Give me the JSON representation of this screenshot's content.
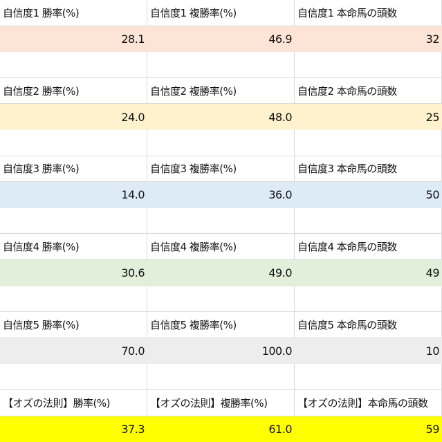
{
  "blocks": [
    {
      "headers": [
        "自信度1 勝率(%)",
        "自信度1 複勝率(%)",
        "自信度1 本命馬の頭数"
      ],
      "values": [
        "28.1",
        "46.9",
        "32"
      ],
      "fill": "#fce4d6"
    },
    {
      "headers": [
        "自信度2 勝率(%)",
        "自信度2 複勝率(%)",
        "自信度2 本命馬の頭数"
      ],
      "values": [
        "24.0",
        "48.0",
        "25"
      ],
      "fill": "#fff2cc"
    },
    {
      "headers": [
        "自信度3 勝率(%)",
        "自信度3 複勝率(%)",
        "自信度3 本命馬の頭数"
      ],
      "values": [
        "14.0",
        "36.0",
        "50"
      ],
      "fill": "#ddebf7"
    },
    {
      "headers": [
        "自信度4 勝率(%)",
        "自信度4 複勝率(%)",
        "自信度4 本命馬の頭数"
      ],
      "values": [
        "30.6",
        "49.0",
        "49"
      ],
      "fill": "#e2efda"
    },
    {
      "headers": [
        "自信度5 勝率(%)",
        "自信度5 複勝率(%)",
        "自信度5 本命馬の頭数"
      ],
      "values": [
        "70.0",
        "100.0",
        "10"
      ],
      "fill": "#ededed"
    },
    {
      "headers": [
        "【オズの法則】勝率(%)",
        "【オズの法則】複勝率(%)",
        "【オズの法則】本命馬の頭数"
      ],
      "values": [
        "37.3",
        "61.0",
        "59"
      ],
      "fill": "#ffff00"
    }
  ]
}
